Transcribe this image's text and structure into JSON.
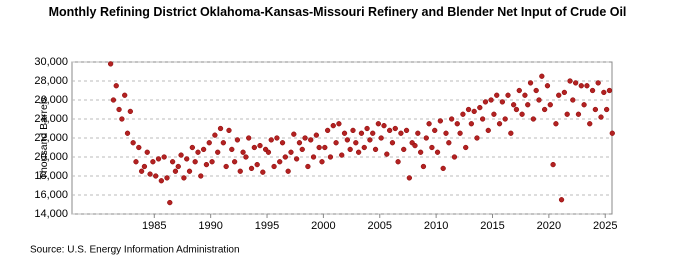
{
  "chart_data": {
    "type": "scatter",
    "title": "Monthly Refining District Oklahoma-Kansas-Missouri Refinery and Blender Net Input of Crude Oil",
    "y_label": "Thousand Barrels",
    "source": "Source: U.S. Energy Information Administration",
    "color": "#b22222",
    "grid": true,
    "xlim": [
      1977.7,
      2025.6
    ],
    "ylim": [
      14000,
      30000
    ],
    "xticks": [
      1985,
      1990,
      1995,
      2000,
      2005,
      2010,
      2015,
      2020,
      2025
    ],
    "yticks": [
      {
        "value": 14000,
        "label": "14,000"
      },
      {
        "value": 16000,
        "label": "16,000"
      },
      {
        "value": 18000,
        "label": "18,000"
      },
      {
        "value": 20000,
        "label": "20,000"
      },
      {
        "value": 22000,
        "label": "22,000"
      },
      {
        "value": 24000,
        "label": "24,000"
      },
      {
        "value": 26000,
        "label": "26,000"
      },
      {
        "value": 28000,
        "label": "28,000"
      },
      {
        "value": 30000,
        "label": "30,000"
      }
    ],
    "x": [
      1981.125,
      1981.375,
      1981.625,
      1981.875,
      1982.125,
      1982.375,
      1982.625,
      1982.875,
      1983.125,
      1983.375,
      1983.625,
      1983.875,
      1984.125,
      1984.375,
      1984.625,
      1984.875,
      1985.125,
      1985.375,
      1985.625,
      1985.875,
      1986.125,
      1986.375,
      1986.625,
      1986.875,
      1987.125,
      1987.375,
      1987.625,
      1987.875,
      1988.125,
      1988.375,
      1988.625,
      1988.875,
      1989.125,
      1989.375,
      1989.625,
      1989.875,
      1990.125,
      1990.375,
      1990.625,
      1990.875,
      1991.125,
      1991.375,
      1991.625,
      1991.875,
      1992.125,
      1992.375,
      1992.625,
      1992.875,
      1993.125,
      1993.375,
      1993.625,
      1993.875,
      1994.125,
      1994.375,
      1994.625,
      1994.875,
      1995.125,
      1995.375,
      1995.625,
      1995.875,
      1996.125,
      1996.375,
      1996.625,
      1996.875,
      1997.125,
      1997.375,
      1997.625,
      1997.875,
      1998.125,
      1998.375,
      1998.625,
      1998.875,
      1999.125,
      1999.375,
      1999.625,
      1999.875,
      2000.125,
      2000.375,
      2000.625,
      2000.875,
      2001.125,
      2001.375,
      2001.625,
      2001.875,
      2002.125,
      2002.375,
      2002.625,
      2002.875,
      2003.125,
      2003.375,
      2003.625,
      2003.875,
      2004.125,
      2004.375,
      2004.625,
      2004.875,
      2005.125,
      2005.375,
      2005.625,
      2005.875,
      2006.125,
      2006.375,
      2006.625,
      2006.875,
      2007.125,
      2007.375,
      2007.625,
      2007.875,
      2008.125,
      2008.375,
      2008.625,
      2008.875,
      2009.125,
      2009.375,
      2009.625,
      2009.875,
      2010.125,
      2010.375,
      2010.625,
      2010.875,
      2011.125,
      2011.375,
      2011.625,
      2011.875,
      2012.125,
      2012.375,
      2012.625,
      2012.875,
      2013.125,
      2013.375,
      2013.625,
      2013.875,
      2014.125,
      2014.375,
      2014.625,
      2014.875,
      2015.125,
      2015.375,
      2015.625,
      2015.875,
      2016.125,
      2016.375,
      2016.625,
      2016.875,
      2017.125,
      2017.375,
      2017.625,
      2017.875,
      2018.125,
      2018.375,
      2018.625,
      2018.875,
      2019.125,
      2019.375,
      2019.625,
      2019.875,
      2020.125,
      2020.375,
      2020.625,
      2020.875,
      2021.125,
      2021.375,
      2021.625,
      2021.875,
      2022.125,
      2022.375,
      2022.625,
      2022.875,
      2023.125,
      2023.375,
      2023.625,
      2023.875,
      2024.125,
      2024.375,
      2024.625,
      2024.875,
      2025.125,
      2025.375,
      2025.625
    ],
    "values": [
      29800,
      26000,
      27500,
      25000,
      24000,
      26500,
      22500,
      24800,
      21500,
      19500,
      21000,
      18500,
      19000,
      20500,
      18200,
      19500,
      18000,
      19800,
      17500,
      20000,
      17800,
      15200,
      19500,
      18500,
      19000,
      20200,
      17800,
      19800,
      18500,
      21000,
      19500,
      20500,
      18000,
      20800,
      19200,
      21500,
      19500,
      22300,
      20500,
      23000,
      21500,
      19000,
      22800,
      20800,
      19500,
      21800,
      18500,
      20500,
      20000,
      22000,
      18800,
      21000,
      19200,
      21200,
      18400,
      20800,
      20500,
      21800,
      19000,
      22000,
      19500,
      21500,
      20000,
      18500,
      20500,
      22400,
      19800,
      21500,
      20800,
      22000,
      19000,
      21800,
      20000,
      22300,
      21000,
      19500,
      21000,
      22800,
      20000,
      23300,
      21500,
      23500,
      20200,
      22500,
      21800,
      20800,
      22800,
      21500,
      20500,
      22500,
      21000,
      23000,
      21800,
      22500,
      20800,
      23500,
      22000,
      23300,
      20300,
      22800,
      21500,
      23000,
      19500,
      22500,
      20800,
      22800,
      17800,
      21500,
      21200,
      22500,
      20500,
      19000,
      22000,
      23500,
      21000,
      22800,
      20500,
      23800,
      18800,
      22500,
      21500,
      24000,
      20000,
      23500,
      22500,
      24500,
      21000,
      25000,
      23500,
      24800,
      22000,
      25200,
      24000,
      25800,
      22800,
      26000,
      24500,
      26500,
      23500,
      25800,
      24000,
      26500,
      22500,
      25500,
      25000,
      27000,
      24500,
      26500,
      25500,
      27800,
      24000,
      27000,
      26000,
      28500,
      25000,
      27500,
      25500,
      19200,
      23500,
      26500,
      15500,
      26800,
      24500,
      28000,
      26000,
      27800,
      24500,
      27500,
      25500,
      27500,
      23500,
      27000,
      25000,
      27800,
      24200,
      26800,
      25000,
      27000,
      22500
    ]
  }
}
